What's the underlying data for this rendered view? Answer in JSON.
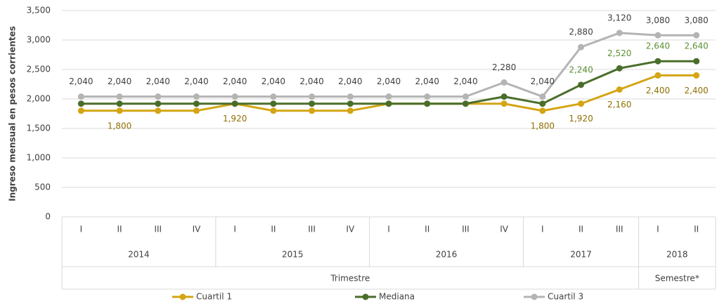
{
  "chart_data": {
    "type": "line",
    "y_label": "Ingreso mensual en pesos corrientes",
    "categories": [
      "I",
      "II",
      "III",
      "IV",
      "I",
      "II",
      "III",
      "IV",
      "I",
      "II",
      "III",
      "IV",
      "I",
      "II",
      "III",
      "I",
      "II"
    ],
    "x_groups": [
      {
        "label": "2014",
        "span": 4
      },
      {
        "label": "2015",
        "span": 4
      },
      {
        "label": "2016",
        "span": 4
      },
      {
        "label": "2017",
        "span": 3
      },
      {
        "label": "2018",
        "span": 2
      }
    ],
    "x_super_groups": [
      {
        "label": "Trimestre",
        "span": 15
      },
      {
        "label": "Semestre*",
        "span": 2
      }
    ],
    "ylim": [
      0,
      3500
    ],
    "yticks": [
      0,
      500,
      {
        "value": 1000,
        "label": "1,000"
      },
      {
        "value": 1500,
        "label": "1,500"
      },
      {
        "value": 2000,
        "label": "2,000"
      },
      {
        "value": 2500,
        "label": "2,500"
      },
      {
        "value": 3000,
        "label": "3,000"
      },
      {
        "value": 3500,
        "label": "3,500"
      }
    ],
    "grid": true,
    "series": [
      {
        "name": "Cuartil 1",
        "color": "#d4a514",
        "label_color": "#8f6f00",
        "label_pos": "below",
        "values": [
          1800,
          1800,
          1800,
          1800,
          1920,
          1800,
          1800,
          1800,
          1920,
          1920,
          1920,
          1920,
          1800,
          1920,
          2160,
          2400,
          2400
        ],
        "value_labels": [
          null,
          "1,800",
          null,
          null,
          "1,920",
          null,
          null,
          null,
          null,
          null,
          null,
          null,
          "1,800",
          "1,920",
          "2,160",
          "2,400",
          "2,400"
        ]
      },
      {
        "name": "Mediana",
        "color": "#4a6e2a",
        "label_color": "#5a9032",
        "label_pos": "above",
        "values": [
          1920,
          1920,
          1920,
          1920,
          1920,
          1920,
          1920,
          1920,
          1920,
          1920,
          1920,
          2040,
          1920,
          2240,
          2520,
          2640,
          2640
        ],
        "value_labels": [
          null,
          null,
          null,
          null,
          null,
          null,
          null,
          null,
          null,
          null,
          null,
          null,
          null,
          "2,240",
          "2,520",
          "2,640",
          "2,640"
        ]
      },
      {
        "name": "Cuartil 3",
        "color": "#b4b4b4",
        "label_color": "#404040",
        "label_pos": "above",
        "values": [
          2040,
          2040,
          2040,
          2040,
          2040,
          2040,
          2040,
          2040,
          2040,
          2040,
          2040,
          2280,
          2040,
          2880,
          3120,
          3080,
          3080
        ],
        "value_labels": [
          "2,040",
          "2,040",
          "2,040",
          "2,040",
          "2,040",
          "2,040",
          "2,040",
          "2,040",
          "2,040",
          "2,040",
          "2,040",
          "2,280",
          "2,040",
          "2,880",
          "3,120",
          "3,080",
          "3,080"
        ]
      }
    ]
  }
}
